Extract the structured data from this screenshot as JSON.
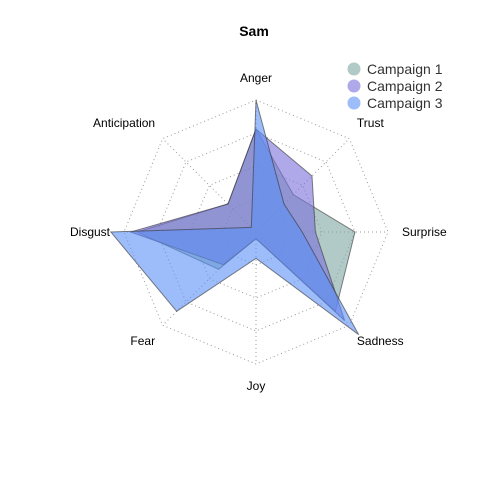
{
  "chart_data": {
    "type": "radar",
    "title": "Sam",
    "axes": [
      "Anger",
      "Trust",
      "Surprise",
      "Sadness",
      "Joy",
      "Fear",
      "Disgust",
      "Anticipation"
    ],
    "rlim": [
      0,
      1
    ],
    "grid": true,
    "legend_position": "top-right",
    "series": [
      {
        "name": "Campaign 1",
        "color": "#7fa6a1",
        "values": [
          0.78,
          0.4,
          0.75,
          0.85,
          0.05,
          0.4,
          0.9,
          0.3
        ]
      },
      {
        "name": "Campaign 2",
        "color": "#7a6fdb",
        "values": [
          0.78,
          0.6,
          0.45,
          0.95,
          0.05,
          0.35,
          0.95,
          0.3
        ]
      },
      {
        "name": "Campaign 3",
        "color": "#5b8ff6",
        "values": [
          1.0,
          0.3,
          0.35,
          1.1,
          0.2,
          0.85,
          1.1,
          0.05
        ]
      }
    ]
  }
}
